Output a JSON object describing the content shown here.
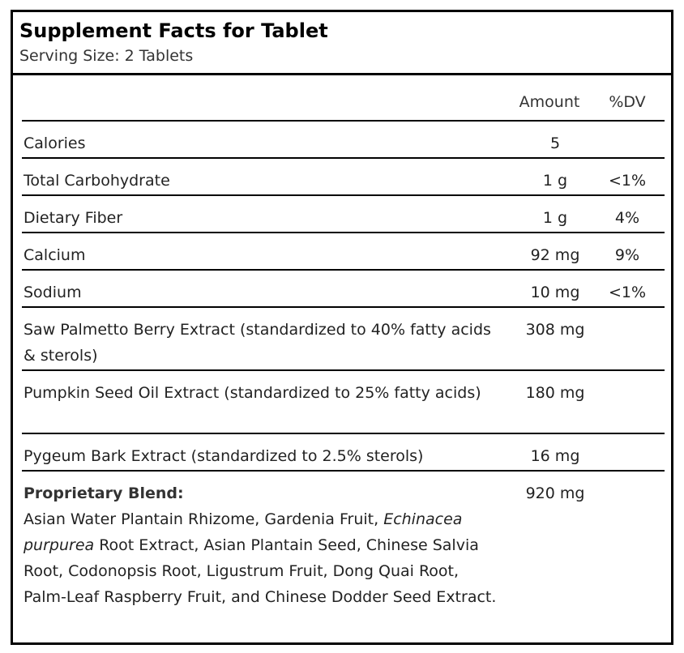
{
  "panel": {
    "title": "Supplement Facts for Tablet",
    "serving_size": "Serving Size: 2 Tablets",
    "headers": {
      "amount": "Amount",
      "dv": "%DV"
    },
    "rows": [
      {
        "name": "Calories",
        "amount": "5",
        "dv": ""
      },
      {
        "name": "Total Carbohydrate",
        "amount": "1 g",
        "dv": "<1%"
      },
      {
        "name": "Dietary Fiber",
        "amount": "1 g",
        "dv": "4%"
      },
      {
        "name": "Calcium",
        "amount": "92 mg",
        "dv": "9%"
      },
      {
        "name": "Sodium",
        "amount": "10 mg",
        "dv": "<1%"
      },
      {
        "name": "Saw Palmetto Berry Extract (standardized to 40% fatty acids & sterols)",
        "amount": "308 mg",
        "dv": ""
      },
      {
        "name": "Pumpkin Seed Oil Extract (standardized to 25% fatty acids)",
        "amount": "180 mg",
        "dv": ""
      },
      {
        "name": "Pygeum Bark Extract (standardized to 2.5% sterols)",
        "amount": "16 mg",
        "dv": ""
      }
    ],
    "blend": {
      "title": "Proprietary Blend:",
      "amount": "920 mg",
      "ingredients_before": "Asian Water Plantain Rhizome, Gardenia Fruit, ",
      "ingredients_italic": "Echinacea purpurea",
      "ingredients_after": " Root Extract, Asian Plantain Seed, Chinese Salvia Root, Codonopsis Root, Ligustrum Fruit, Dong Quai Root, Palm-Leaf Raspberry Fruit, and Chinese Dodder Seed Extract."
    }
  }
}
